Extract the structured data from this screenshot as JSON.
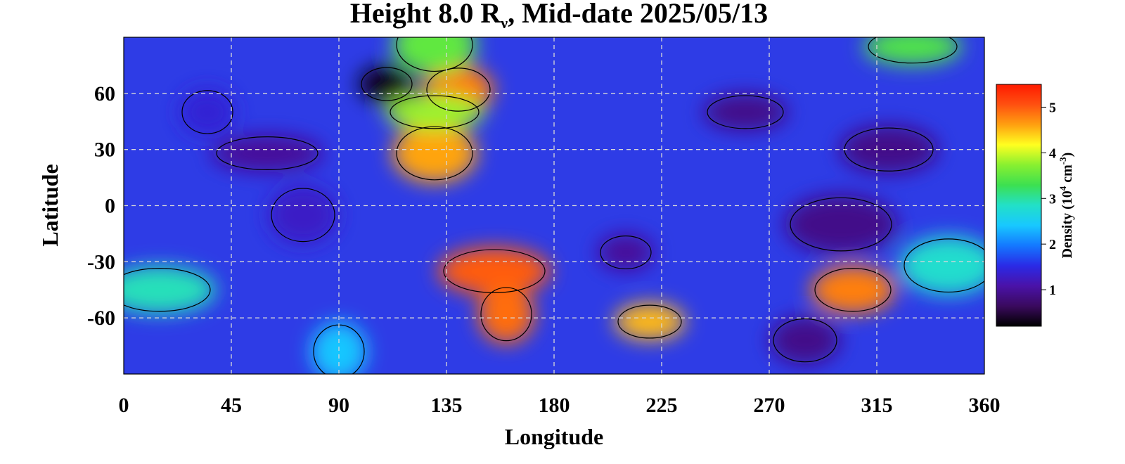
{
  "chart_data": {
    "type": "heatmap",
    "title": "Height 8.0 R",
    "title_sub": "ν",
    "title_rest": ", Mid-date 2025/05/13",
    "xlabel": "Longitude",
    "ylabel": "Latitude",
    "xlim": [
      0,
      360
    ],
    "ylim": [
      -90,
      90
    ],
    "x_ticks": [
      "0",
      "45",
      "90",
      "135",
      "180",
      "225",
      "270",
      "315",
      "360"
    ],
    "x_tick_values": [
      0,
      45,
      90,
      135,
      180,
      225,
      270,
      315,
      360
    ],
    "y_ticks": [
      "60",
      "30",
      "0",
      "-30",
      "-60"
    ],
    "y_tick_values": [
      60,
      30,
      0,
      -30,
      -60
    ],
    "grid": true,
    "colorbar": {
      "label_prefix": "Density (10",
      "label_exp1": "4",
      "label_mid": " cm",
      "label_exp2": "-3",
      "label_suffix": ")",
      "range": [
        0.2,
        5.5
      ],
      "ticks": [
        "5",
        "4",
        "3",
        "2",
        "1"
      ],
      "tick_values": [
        5,
        4,
        3,
        2,
        1
      ],
      "colors": [
        "#000000",
        "#3a0a5e",
        "#4a12a8",
        "#2a2ae6",
        "#1478ff",
        "#18c8ff",
        "#22e0c8",
        "#3ce050",
        "#88f030",
        "#ffff20",
        "#ffa010",
        "#ff5010",
        "#ff1a00"
      ]
    },
    "features": [
      {
        "lon": 110,
        "lat": 65,
        "value": 0.3
      },
      {
        "lon": 140,
        "lat": 62,
        "value": 4.8
      },
      {
        "lon": 130,
        "lat": 28,
        "value": 4.6
      },
      {
        "lon": 130,
        "lat": 50,
        "value": 3.8
      },
      {
        "lon": 155,
        "lat": -35,
        "value": 5.0
      },
      {
        "lon": 160,
        "lat": -58,
        "value": 4.9
      },
      {
        "lon": 220,
        "lat": -62,
        "value": 4.5
      },
      {
        "lon": 305,
        "lat": -45,
        "value": 4.8
      },
      {
        "lon": 345,
        "lat": -32,
        "value": 2.8
      },
      {
        "lon": 60,
        "lat": 28,
        "value": 1.0
      },
      {
        "lon": 35,
        "lat": 50,
        "value": 1.4
      },
      {
        "lon": 75,
        "lat": -5,
        "value": 1.3
      },
      {
        "lon": 260,
        "lat": 50,
        "value": 0.9
      },
      {
        "lon": 320,
        "lat": 30,
        "value": 0.9
      },
      {
        "lon": 300,
        "lat": -10,
        "value": 0.9
      },
      {
        "lon": 210,
        "lat": -25,
        "value": 1.0
      },
      {
        "lon": 285,
        "lat": -72,
        "value": 0.9
      },
      {
        "lon": 130,
        "lat": 86,
        "value": 3.5
      },
      {
        "lon": 330,
        "lat": 85,
        "value": 3.4
      },
      {
        "lon": 15,
        "lat": -45,
        "value": 2.9
      },
      {
        "lon": 90,
        "lat": -78,
        "value": 2.4
      }
    ]
  }
}
